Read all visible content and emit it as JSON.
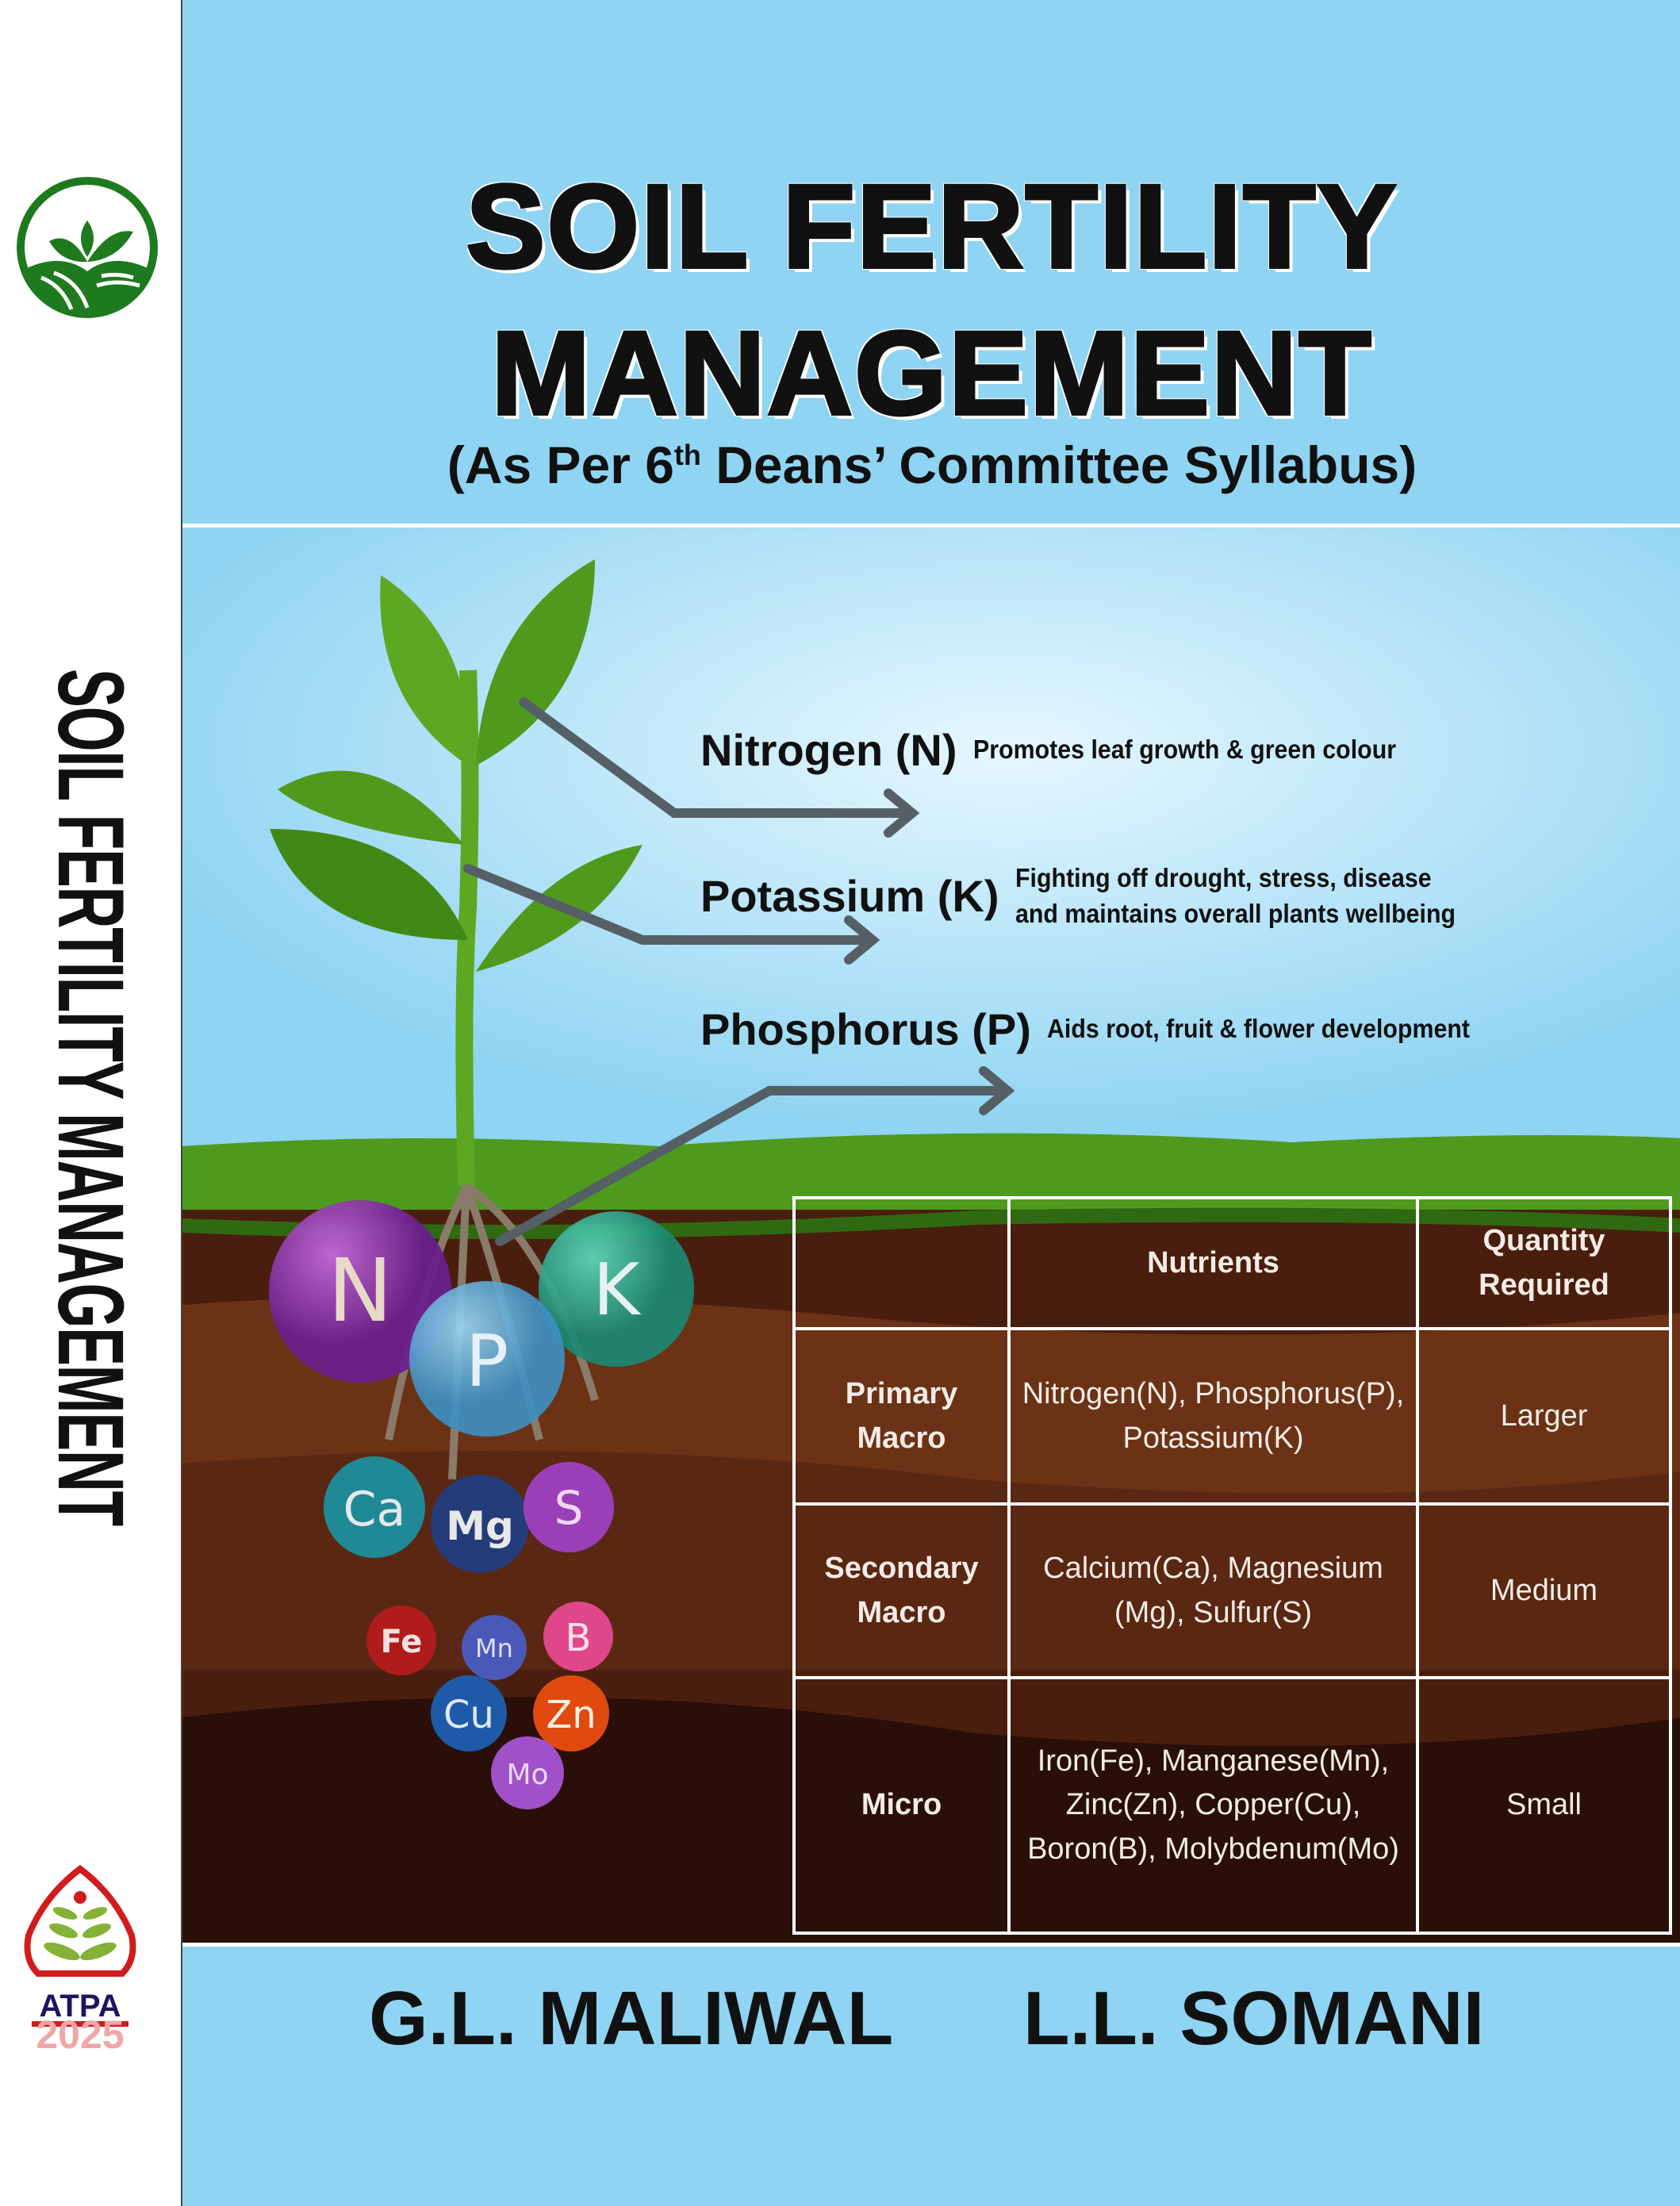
{
  "spine": {
    "title": "SOIL FERTILITY MANAGEMENT",
    "publisher_logo_text": "ATPA",
    "year": "2025"
  },
  "cover": {
    "title_line1": "SOIL FERTILITY",
    "title_line2": "MANAGEMENT",
    "subtitle_pre": "(As Per 6",
    "subtitle_sup": "th",
    "subtitle_post": " Deans’ Committee Syllabus)",
    "nutrients": [
      {
        "name": "Nitrogen (N)",
        "desc": "Promotes leaf growth &  green colour"
      },
      {
        "name": "Potassium (K)",
        "desc_line1": "Fighting off drought,  stress, disease",
        "desc_line2": "and maintains overall plants wellbeing"
      },
      {
        "name": "Phosphorus (P)",
        "desc": "Aids root, fruit & flower development"
      }
    ],
    "bubbles": [
      "N",
      "P",
      "K",
      "Ca",
      "Mg",
      "S",
      "Fe",
      "Mn",
      "B",
      "Cu",
      "Zn",
      "Mo"
    ],
    "table": {
      "headers": [
        "",
        "Nutrients",
        "Quantity Required"
      ],
      "rows": [
        {
          "type": "Primary Macro",
          "nutrients": "Nitrogen(N), Phosphorus(P), Potassium(K)",
          "quantity": "Larger"
        },
        {
          "type": "Secondary Macro",
          "nutrients": "Calcium(Ca), Magnesium (Mg), Sulfur(S)",
          "quantity": "Medium"
        },
        {
          "type": "Micro",
          "nutrients": "Iron(Fe), Manganese(Mn), Zinc(Zn), Copper(Cu), Boron(B), Molybdenum(Mo)",
          "quantity": "Small"
        }
      ]
    },
    "authors": [
      "G.L. MALIWAL",
      "L.L. SOMANI"
    ]
  },
  "colors": {
    "sky": "#8fd4f2",
    "grass": "#4e9a1e",
    "soil_dark": "#3d170c",
    "soil_mid": "#6b3216",
    "logo_green": "#1e7a1e",
    "logo_red": "#d01c1c",
    "logo_navy": "#1e1560",
    "year_pink": "#f2a6a6"
  }
}
